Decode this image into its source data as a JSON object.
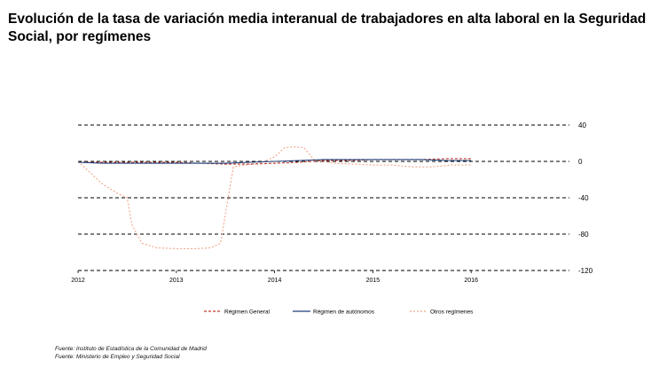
{
  "title": "Evolución de la tasa de variación media interanual de trabajadores en alta laboral en la Seguridad Social, por  regímenes",
  "sources": [
    "Fuente: Instituto de Estadística de la Comunidad de Madrid",
    "Fuente: Ministerio de Empleo y Seguridad Social"
  ],
  "chart_data": {
    "type": "line",
    "title": "",
    "xlabel": "",
    "ylabel": "",
    "x_ticks": [
      "2012",
      "2013",
      "2014",
      "2015",
      "2016"
    ],
    "y_ticks": [
      "40",
      "0",
      "-40",
      "-80",
      "-120"
    ],
    "y_tick_values": [
      40,
      0,
      -40,
      -80,
      -120
    ],
    "ylim": [
      -120,
      40
    ],
    "xlim": [
      2012.0,
      2017.0
    ],
    "y_axis_side": "right",
    "grid": "horizontal dashed",
    "legend_position": "bottom",
    "series": [
      {
        "name": "Régimen General",
        "color": "#c0392b",
        "dash": "3,2",
        "x": [
          2012.0,
          2012.25,
          2012.5,
          2012.75,
          2013.0,
          2013.25,
          2013.5,
          2013.75,
          2014.0,
          2014.25,
          2014.5,
          2014.75,
          2015.0,
          2015.25,
          2015.5,
          2015.75,
          2016.0
        ],
        "values": [
          -1,
          -1,
          -1,
          -1,
          -1,
          -2,
          -3,
          -3,
          -2,
          -1,
          1,
          1,
          2,
          2,
          2,
          3,
          3
        ]
      },
      {
        "name": "Régimen de autónomos",
        "color": "#1f3f7a",
        "dash": "",
        "x": [
          2012.0,
          2012.25,
          2012.5,
          2012.75,
          2013.0,
          2013.25,
          2013.5,
          2013.75,
          2014.0,
          2014.25,
          2014.5,
          2014.75,
          2015.0,
          2015.25,
          2015.5,
          2015.75,
          2016.0
        ],
        "values": [
          -1,
          -2,
          -2,
          -2,
          -2,
          -2,
          -2,
          -1,
          0,
          1,
          2,
          2,
          2,
          2,
          2,
          1,
          1
        ]
      },
      {
        "name": "Otros regímenes",
        "color": "#f0a488",
        "dash": "2,2",
        "x": [
          2012.0,
          2012.1,
          2012.25,
          2012.4,
          2012.5,
          2012.55,
          2012.65,
          2012.8,
          2013.0,
          2013.2,
          2013.35,
          2013.45,
          2013.58,
          2013.7,
          2013.85,
          2014.0,
          2014.1,
          2014.2,
          2014.3,
          2014.4,
          2014.6,
          2014.8,
          2015.0,
          2015.2,
          2015.4,
          2015.6,
          2015.8,
          2016.0
        ],
        "values": [
          0,
          -10,
          -25,
          -35,
          -40,
          -70,
          -90,
          -95,
          -96,
          -96,
          -95,
          -90,
          -6,
          -4,
          -2,
          5,
          15,
          16,
          15,
          2,
          -2,
          -3,
          -4,
          -4,
          -6,
          -6,
          -4,
          -4
        ]
      }
    ]
  }
}
